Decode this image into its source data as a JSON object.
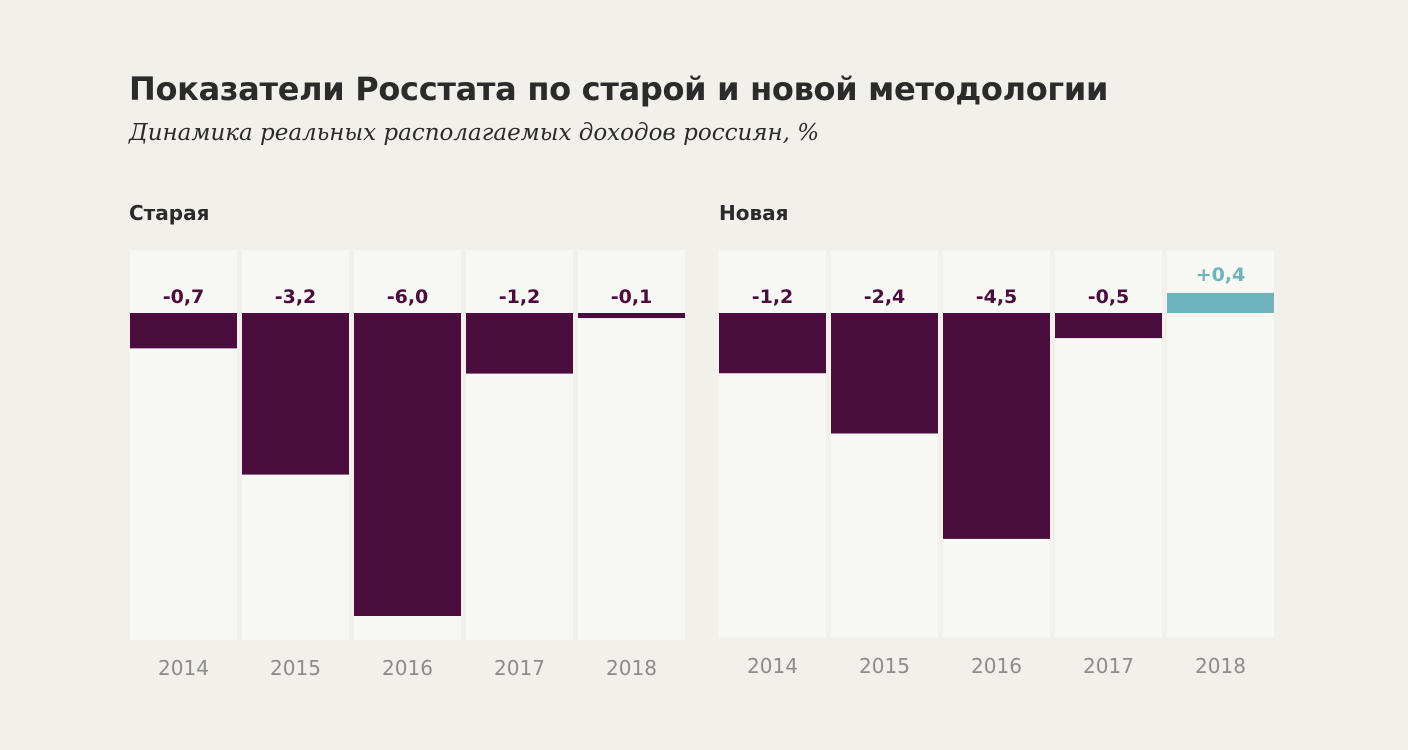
{
  "header": {
    "title": "Показатели Росстата по старой и новой методологии",
    "subtitle": "Динамика реальных располагаемых доходов россиян, %"
  },
  "colors": {
    "background": "#f1f0ea",
    "column_background": "#f7f7f3",
    "negative": "#4a0d3e",
    "positive": "#6fb3bd",
    "tick_text": "#8c8c8a",
    "title_text": "#2b2b2b"
  },
  "chart_data": [
    {
      "type": "bar",
      "title": "Старая",
      "categories": [
        "2014",
        "2015",
        "2016",
        "2017",
        "2018"
      ],
      "values": [
        -0.7,
        -3.2,
        -6.0,
        -1.2,
        -0.1
      ],
      "labels": [
        "-0,7",
        "-3,2",
        "-6,0",
        "-1,2",
        "-0,1"
      ],
      "xlabel": "",
      "ylabel": "%",
      "ylim": [
        -6.5,
        1.25
      ],
      "grid": false
    },
    {
      "type": "bar",
      "title": "Новая",
      "categories": [
        "2014",
        "2015",
        "2016",
        "2017",
        "2018"
      ],
      "values": [
        -1.2,
        -2.4,
        -4.5,
        -0.5,
        0.4
      ],
      "labels": [
        "-1,2",
        "-2,4",
        "-4,5",
        "-0,5",
        "+0,4"
      ],
      "xlabel": "",
      "ylabel": "%",
      "ylim": [
        -6.5,
        1.25
      ],
      "grid": false
    }
  ]
}
